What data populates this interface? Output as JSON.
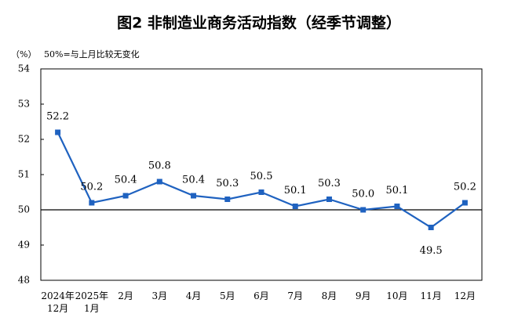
{
  "chart_data": {
    "type": "line",
    "title": "图2  非制造业商务活动指数（经季节调整）",
    "y_unit": "（%）",
    "note": "50%=与上月比较无变化",
    "categories": [
      "2024年\n12月",
      "2025年\n1月",
      "2月",
      "3月",
      "4月",
      "5月",
      "6月",
      "7月",
      "8月",
      "9月",
      "10月",
      "11月",
      "12月"
    ],
    "values": [
      52.2,
      50.2,
      50.4,
      50.8,
      50.4,
      50.3,
      50.5,
      50.1,
      50.3,
      50.0,
      50.1,
      49.5,
      50.2
    ],
    "value_labels": [
      "52.2",
      "50.2",
      "50.4",
      "50.8",
      "50.4",
      "50.3",
      "50.5",
      "50.1",
      "50.3",
      "50.0",
      "50.1",
      "49.5",
      "50.2"
    ],
    "color": "#1f62c0",
    "ylim": [
      48,
      54
    ],
    "yticks": [
      48,
      49,
      50,
      51,
      52,
      53,
      54
    ],
    "reference_line": 50
  }
}
